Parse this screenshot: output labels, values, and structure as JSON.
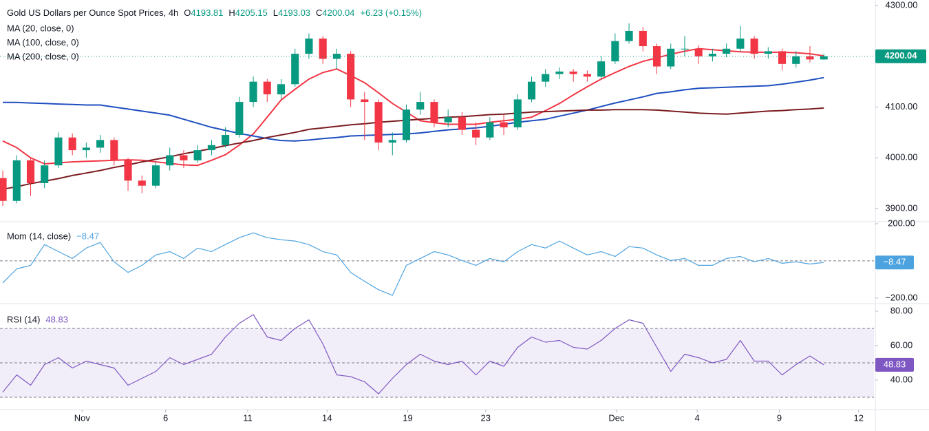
{
  "chart_data": [
    {
      "type": "candlestick",
      "title": "Gold US Dollars per Ounce Spot Prices, 4h",
      "header": [
        {
          "label": "O",
          "value": 4193.81
        },
        {
          "label": "H",
          "value": 4205.15
        },
        {
          "label": "L",
          "value": 4193.03
        },
        {
          "label": "C",
          "value": 4200.04
        }
      ],
      "change": "+6.23 (+0.15%)",
      "up_color": "#089981",
      "down_color": "#f23645",
      "open": [
        3960,
        3915,
        3995,
        3950,
        3985,
        4040,
        4015,
        4020,
        4035,
        3995,
        3955,
        3945,
        3985,
        4005,
        3995,
        4015,
        4025,
        4045,
        4110,
        4150,
        4125,
        4145,
        4205,
        4235,
        4195,
        4205,
        4115,
        4110,
        4030,
        4035,
        4095,
        4110,
        4070,
        4080,
        4055,
        4040,
        4070,
        4060,
        4115,
        4150,
        4165,
        4170,
        4165,
        4160,
        4190,
        4230,
        4250,
        4220,
        4180,
        4215,
        4215,
        4200,
        4205,
        4215,
        4235,
        4205,
        4210,
        4185,
        4200,
        4193.81
      ],
      "high": [
        3975,
        4005,
        4000,
        3995,
        4050,
        4048,
        4030,
        4045,
        4040,
        4000,
        3965,
        3992,
        4020,
        4015,
        4025,
        4035,
        4060,
        4120,
        4160,
        4155,
        4155,
        4215,
        4245,
        4240,
        4215,
        4210,
        4130,
        4115,
        4050,
        4105,
        4130,
        4115,
        4095,
        4090,
        4070,
        4080,
        4085,
        4125,
        4160,
        4175,
        4178,
        4175,
        4172,
        4200,
        4245,
        4265,
        4258,
        4225,
        4225,
        4240,
        4222,
        4215,
        4225,
        4260,
        4240,
        4218,
        4215,
        4210,
        4220,
        4205.15
      ],
      "low": [
        3905,
        3910,
        3925,
        3940,
        3980,
        4005,
        4000,
        4010,
        3985,
        3935,
        3930,
        3940,
        3975,
        3980,
        3990,
        4005,
        4020,
        4040,
        4100,
        4110,
        4115,
        4140,
        4195,
        4185,
        4175,
        4100,
        4035,
        4015,
        4005,
        4030,
        4085,
        4060,
        4060,
        4045,
        4025,
        4035,
        4045,
        4055,
        4110,
        4140,
        4155,
        4150,
        4150,
        4155,
        4185,
        4225,
        4210,
        4165,
        4175,
        4200,
        4185,
        4190,
        4198,
        4210,
        4195,
        4195,
        4172,
        4178,
        4188,
        4193.03
      ],
      "close": [
        3915,
        3995,
        3950,
        3985,
        4040,
        4015,
        4020,
        4035,
        3995,
        3955,
        3945,
        3985,
        4005,
        3995,
        4015,
        4025,
        4045,
        4110,
        4150,
        4125,
        4145,
        4205,
        4235,
        4195,
        4205,
        4115,
        4110,
        4030,
        4035,
        4095,
        4110,
        4070,
        4080,
        4055,
        4040,
        4070,
        4060,
        4115,
        4150,
        4165,
        4170,
        4165,
        4160,
        4190,
        4230,
        4250,
        4220,
        4180,
        4215,
        4215,
        4200,
        4205,
        4215,
        4235,
        4205,
        4210,
        4185,
        4200,
        4193.81,
        4200.04
      ],
      "series": [
        {
          "name": "MA (20, close, 0)",
          "color": "#f23645",
          "values": [
            4033,
            4020,
            4000,
            3988,
            3990,
            3992,
            3993,
            3994,
            3995,
            3996,
            3995,
            3992,
            3989,
            3986,
            3985,
            3995,
            4006,
            4025,
            4047,
            4080,
            4114,
            4135,
            4155,
            4168,
            4175,
            4162,
            4148,
            4128,
            4107,
            4090,
            4073,
            4069,
            4066,
            4066,
            4066,
            4070,
            4073,
            4076,
            4080,
            4093,
            4107,
            4124,
            4140,
            4155,
            4168,
            4180,
            4190,
            4197,
            4204,
            4210,
            4215,
            4213,
            4211,
            4209,
            4208,
            4208,
            4208,
            4207,
            4205,
            4201
          ]
        },
        {
          "name": "MA (100, close, 0)",
          "color": "#1e4fbf",
          "values": [
            4109,
            4109,
            4108,
            4107,
            4106,
            4105,
            4104,
            4104,
            4100,
            4096,
            4092,
            4088,
            4084,
            4076,
            4068,
            4060,
            4054,
            4048,
            4043,
            4038,
            4034,
            4033,
            4035,
            4038,
            4040,
            4043,
            4044,
            4045,
            4046,
            4047,
            4049,
            4052,
            4055,
            4057,
            4059,
            4062,
            4066,
            4070,
            4073,
            4076,
            4082,
            4088,
            4094,
            4101,
            4108,
            4114,
            4120,
            4127,
            4130,
            4134,
            4137,
            4138,
            4139,
            4140,
            4141,
            4142,
            4145,
            4149,
            4153,
            4158
          ]
        },
        {
          "name": "MA (200, close, 0)",
          "color": "#7b1c20",
          "values": [
            3938,
            3943,
            3949,
            3954,
            3959,
            3965,
            3970,
            3975,
            3981,
            3986,
            3992,
            3997,
            4002,
            4008,
            4013,
            4018,
            4024,
            4029,
            4034,
            4040,
            4045,
            4050,
            4056,
            4059,
            4062,
            4065,
            4067,
            4070,
            4072,
            4074,
            4076,
            4078,
            4080,
            4081,
            4083,
            4085,
            4086,
            4088,
            4090,
            4091,
            4092,
            4093,
            4094,
            4094,
            4095,
            4095,
            4095,
            4094,
            4092,
            4090,
            4088,
            4087,
            4086,
            4088,
            4090,
            4092,
            4093,
            4095,
            4096,
            4098
          ]
        }
      ],
      "ylim": [
        3874,
        4311
      ],
      "yticks": [
        {
          "value": 4300,
          "label": "4300.00"
        },
        {
          "value": 4200,
          "label": "4200.00"
        },
        {
          "value": 4100,
          "label": "4100.00"
        },
        {
          "value": 4000,
          "label": "4000.00"
        },
        {
          "value": 3900,
          "label": "3900.00"
        }
      ]
    },
    {
      "type": "line",
      "title": "Mom (14, close)",
      "color": "#4da3e0",
      "values": [
        -118,
        -43,
        -24,
        88,
        50,
        13,
        69,
        99,
        -5,
        -62,
        -24,
        32,
        50,
        13,
        69,
        50,
        88,
        125,
        151,
        125,
        114,
        107,
        88,
        50,
        32,
        -62,
        -110,
        -155,
        -185,
        -24,
        13,
        50,
        32,
        2,
        -24,
        13,
        -5,
        50,
        88,
        69,
        107,
        69,
        32,
        50,
        24,
        77,
        69,
        32,
        2,
        13,
        -24,
        -24,
        13,
        24,
        -5,
        13,
        -13,
        -5,
        -17,
        -8.47
      ],
      "last_label": "−8.47",
      "ylim": [
        -230,
        211
      ],
      "yticks": [
        {
          "value": 200,
          "label": "200.00"
        },
        {
          "value": -200,
          "label": "−200.00"
        }
      ],
      "reference_lines": [
        0
      ]
    },
    {
      "type": "line",
      "title": "RSI (14)",
      "color": "#7e57c2",
      "values": [
        33,
        43,
        37,
        49,
        53,
        47,
        51,
        49,
        47,
        37,
        41,
        45,
        53,
        49,
        52,
        55,
        65,
        73,
        78,
        65,
        63,
        70,
        75,
        61,
        43,
        42,
        39,
        32,
        41,
        49,
        55,
        51,
        49,
        51,
        43,
        51,
        48,
        59,
        65,
        62,
        63,
        59,
        58,
        63,
        70,
        75,
        73,
        59,
        45,
        55,
        53,
        50,
        52,
        63,
        51,
        51,
        43,
        49,
        54,
        48.83
      ],
      "ylim": [
        22.8,
        83.6
      ],
      "yticks": [
        {
          "value": 80,
          "label": "80.00"
        },
        {
          "value": 60,
          "label": "60.00"
        },
        {
          "value": 40,
          "label": "40.00"
        }
      ],
      "band": [
        30,
        70
      ],
      "reference_lines": [
        70,
        50,
        30
      ],
      "xlim": [
        -0.2,
        62.6
      ],
      "xticks": [
        {
          "value": 5.7,
          "label": "Nov"
        },
        {
          "value": 11.7,
          "label": "6"
        },
        {
          "value": 17.6,
          "label": "11"
        },
        {
          "value": 23.3,
          "label": "14"
        },
        {
          "value": 29.1,
          "label": "19"
        },
        {
          "value": 34.7,
          "label": "23"
        },
        {
          "value": 44.1,
          "label": "Dec"
        },
        {
          "value": 49.9,
          "label": "4"
        },
        {
          "value": 55.8,
          "label": "9"
        },
        {
          "value": 61.5,
          "label": "12"
        }
      ]
    }
  ]
}
